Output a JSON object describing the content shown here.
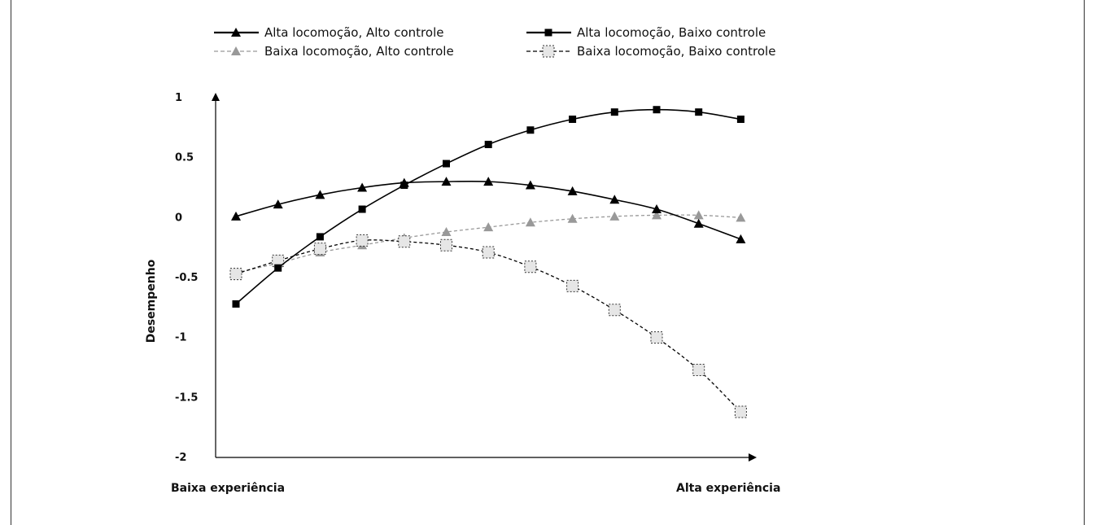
{
  "chart_data": {
    "type": "line",
    "title": "",
    "ylabel": "Desempenho",
    "xlabel_left": "Baixa experiência",
    "xlabel_right": "Alta experiência",
    "ylim": [
      -2,
      1
    ],
    "xlim": [
      0,
      13
    ],
    "yticks": [
      "1",
      "0.5",
      "0",
      "-0.5",
      "-1",
      "-1.5",
      "-2"
    ],
    "ytick_values": [
      1,
      0.5,
      0,
      -0.5,
      -1,
      -1.5,
      -2
    ],
    "x": [
      0,
      1,
      2,
      3,
      4,
      5,
      6,
      7,
      8,
      9,
      10,
      11,
      12
    ],
    "series": [
      {
        "name": "Alta locomoção, Alto controle",
        "marker": "triangle",
        "line": "solid",
        "color": "#000000",
        "values": [
          0.01,
          0.11,
          0.19,
          0.25,
          0.29,
          0.3,
          0.3,
          0.27,
          0.22,
          0.15,
          0.07,
          -0.05,
          -0.18
        ]
      },
      {
        "name": "Alta locomoção, Baixo controle",
        "marker": "square",
        "line": "solid",
        "color": "#000000",
        "values": [
          -0.72,
          -0.42,
          -0.16,
          0.07,
          0.27,
          0.45,
          0.61,
          0.73,
          0.82,
          0.88,
          0.9,
          0.88,
          0.82
        ]
      },
      {
        "name": "Baixa locomoção, Alto controle",
        "marker": "triangle",
        "line": "dashed",
        "color": "#999999",
        "values": [
          -0.46,
          -0.38,
          -0.29,
          -0.23,
          -0.17,
          -0.12,
          -0.08,
          -0.04,
          -0.01,
          0.01,
          0.02,
          0.02,
          0.0
        ]
      },
      {
        "name": "Baixa locomoção, Baixo controle",
        "marker": "square-open",
        "line": "dashed",
        "color": "#000000",
        "values": [
          -0.47,
          -0.36,
          -0.26,
          -0.19,
          -0.2,
          -0.23,
          -0.29,
          -0.41,
          -0.57,
          -0.77,
          -1.0,
          -1.27,
          -1.62
        ]
      }
    ]
  }
}
